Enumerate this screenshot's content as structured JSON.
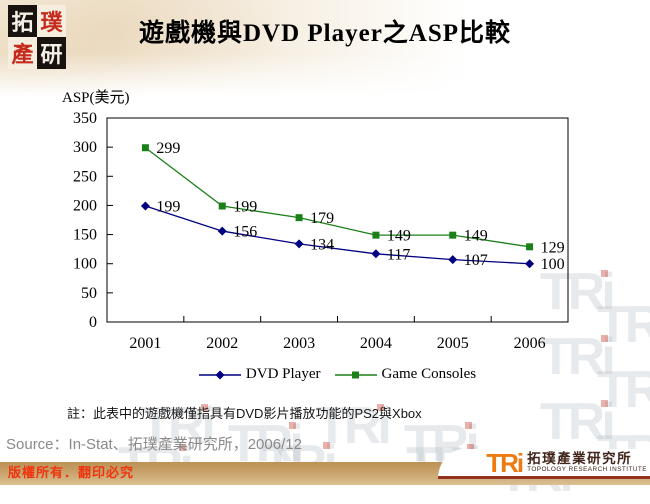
{
  "header": {
    "title": "遊戲機與DVD Player之ASP比較"
  },
  "branding": {
    "seal": {
      "chars": [
        "拓",
        "璞",
        "產",
        "研"
      ]
    },
    "watermark_text": "TRi",
    "logo": {
      "wordmark": "TRi",
      "org_zh": "拓璞產業研究所",
      "org_en": "TOPOLOGY RESEARCH INSTITUTE"
    },
    "colors": {
      "dvd_navy": "#000080",
      "console_green": "#1A8018",
      "bar_tan": "#C8A26A",
      "logo_orange": "#EE7A12",
      "maroon_line": "#93301E",
      "copyright_red": "#EE3510"
    }
  },
  "chart_data": {
    "type": "line",
    "title": "遊戲機與DVD Player之ASP比較",
    "ylabel": "ASP(美元)",
    "xlabel": "",
    "categories": [
      "2001",
      "2002",
      "2003",
      "2004",
      "2005",
      "2006"
    ],
    "series": [
      {
        "name": "DVD Player",
        "color": "#000080",
        "marker": "diamond",
        "values": [
          199,
          156,
          134,
          117,
          107,
          100
        ]
      },
      {
        "name": "Game Consoles",
        "color": "#1A8018",
        "marker": "square",
        "values": [
          299,
          199,
          179,
          149,
          149,
          129
        ]
      }
    ],
    "ylim": [
      0,
      350
    ],
    "ytick_step": 50,
    "grid": false,
    "legend_position": "bottom",
    "data_labels": true
  },
  "footer": {
    "note": "註：此表中的遊戲機僅指具有DVD影片播放功能的PS2與Xbox",
    "source": "Source：In-Stat、拓璞產業研究所，2006/12",
    "copyright": "版權所有．翻印必究"
  }
}
